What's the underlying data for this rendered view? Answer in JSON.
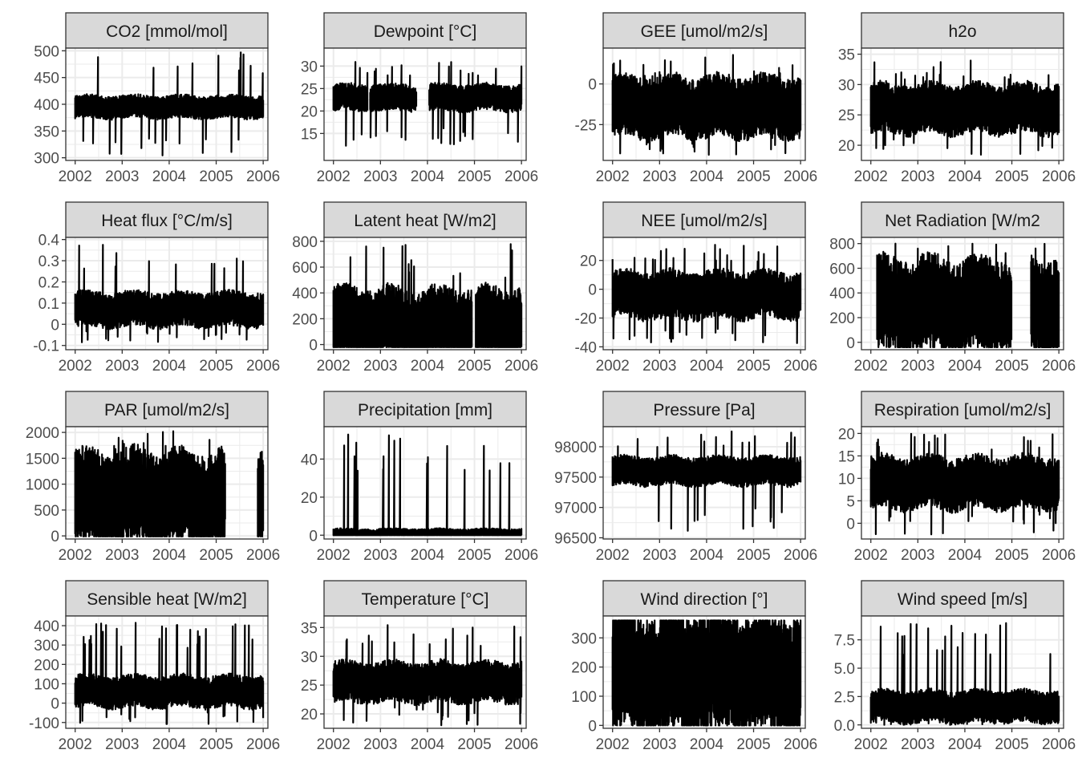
{
  "chart_data": [
    {
      "type": "line",
      "title": "CO2 [mmol/mol]",
      "xticks": [
        "2002",
        "2003",
        "2004",
        "2005",
        "2006"
      ],
      "yticks": [
        300,
        350,
        400,
        450,
        500
      ],
      "ylim": [
        295,
        505
      ],
      "band": {
        "base": 395,
        "amp": 18,
        "lo": 300,
        "hi": 498
      },
      "gaps": []
    },
    {
      "type": "line",
      "title": "Dewpoint [°C]",
      "xticks": [
        "2002",
        "2003",
        "2004",
        "2005",
        "2006"
      ],
      "yticks": [
        15,
        20,
        25,
        30
      ],
      "ylim": [
        9,
        34
      ],
      "band": {
        "base": 23,
        "amp": 2.5,
        "lo": 12,
        "hi": 31
      },
      "gaps": [
        [
          2002.73,
          2002.78
        ],
        [
          2003.77,
          2004.03
        ]
      ]
    },
    {
      "type": "line",
      "title": "GEE [umol/m2/s]",
      "xticks": [
        "2002",
        "2003",
        "2004",
        "2005",
        "2006"
      ],
      "yticks": [
        0,
        -25
      ],
      "ylim": [
        -47,
        22
      ],
      "band": {
        "base": -14,
        "amp": 16,
        "lo": -45,
        "hi": 18
      },
      "gaps": []
    },
    {
      "type": "line",
      "title": "h2o",
      "xticks": [
        "2002",
        "2003",
        "2004",
        "2005",
        "2006"
      ],
      "yticks": [
        20,
        25,
        30,
        35
      ],
      "ylim": [
        17.5,
        36
      ],
      "band": {
        "base": 26,
        "amp": 3.5,
        "lo": 18,
        "hi": 34
      },
      "gaps": []
    },
    {
      "type": "line",
      "title": "Heat flux [°C/m/s]",
      "xticks": [
        "2002",
        "2003",
        "2004",
        "2005",
        "2006"
      ],
      "yticks": [
        -0.1,
        0.0,
        0.1,
        0.2,
        0.3,
        0.4
      ],
      "ylim": [
        -0.12,
        0.41
      ],
      "band": {
        "base": 0.07,
        "amp": 0.07,
        "lo": -0.09,
        "hi": 0.38
      },
      "gaps": []
    },
    {
      "type": "line",
      "title": "Latent heat [W/m2]",
      "xticks": [
        "2002",
        "2003",
        "2004",
        "2005",
        "2006"
      ],
      "yticks": [
        0,
        200,
        400,
        600,
        800
      ],
      "ylim": [
        -40,
        830
      ],
      "band": {
        "base": 150,
        "amp": 250,
        "lo": -20,
        "hi": 780
      },
      "gaps": [
        [
          2004.95,
          2005.02
        ]
      ]
    },
    {
      "type": "line",
      "title": "NEE [umol/m2/s]",
      "xticks": [
        "2002",
        "2003",
        "2004",
        "2005",
        "2006"
      ],
      "yticks": [
        -40,
        -20,
        0,
        20
      ],
      "ylim": [
        -42,
        36
      ],
      "band": {
        "base": -4,
        "amp": 14,
        "lo": -39,
        "hi": 32
      },
      "gaps": []
    },
    {
      "type": "line",
      "title": "Net Radiation [W/m2",
      "xticks": [
        "2002",
        "2003",
        "2004",
        "2005",
        "2006"
      ],
      "yticks": [
        0,
        200,
        400,
        600,
        800
      ],
      "ylim": [
        -60,
        850
      ],
      "band": {
        "base": 300,
        "amp": 330,
        "lo": -40,
        "hi": 800
      },
      "gaps": [
        [
          2002.0,
          2002.13
        ],
        [
          2005.0,
          2005.4
        ]
      ]
    },
    {
      "type": "line",
      "title": "PAR [umol/m2/s]",
      "xticks": [
        "2002",
        "2003",
        "2004",
        "2005",
        "2006"
      ],
      "yticks": [
        0,
        500,
        1000,
        1500,
        2000
      ],
      "ylim": [
        -60,
        2110
      ],
      "band": {
        "base": 700,
        "amp": 800,
        "lo": -10,
        "hi": 2060
      },
      "gaps": [
        [
          2005.2,
          2005.88
        ]
      ]
    },
    {
      "type": "line",
      "title": "Precipitation [mm]",
      "xticks": [
        "2002",
        "2003",
        "2004",
        "2005",
        "2006"
      ],
      "yticks": [
        0,
        20,
        40
      ],
      "ylim": [
        -2,
        57
      ],
      "band": {
        "base": 1,
        "amp": 2,
        "lo": 0,
        "hi": 54
      },
      "gaps": []
    },
    {
      "type": "line",
      "title": "Pressure [Pa]",
      "xticks": [
        "2002",
        "2003",
        "2004",
        "2005",
        "2006"
      ],
      "yticks": [
        96500,
        97000,
        97500,
        98000
      ],
      "ylim": [
        96480,
        98330
      ],
      "band": {
        "base": 97600,
        "amp": 200,
        "lo": 96580,
        "hi": 98260
      },
      "gaps": []
    },
    {
      "type": "line",
      "title": "Respiration [umol/m2/s]",
      "xticks": [
        "2002",
        "2003",
        "2004",
        "2005",
        "2006"
      ],
      "yticks": [
        0,
        5,
        10,
        15,
        20
      ],
      "ylim": [
        -3.5,
        21.5
      ],
      "band": {
        "base": 9,
        "amp": 5,
        "lo": -2.5,
        "hi": 20
      },
      "gaps": []
    },
    {
      "type": "line",
      "title": "Sensible heat [W/m2]",
      "xticks": [
        "2002",
        "2003",
        "2004",
        "2005",
        "2006"
      ],
      "yticks": [
        -100,
        0,
        100,
        200,
        300,
        400
      ],
      "ylim": [
        -130,
        450
      ],
      "band": {
        "base": 60,
        "amp": 70,
        "lo": -110,
        "hi": 420
      },
      "gaps": []
    },
    {
      "type": "line",
      "title": "Temperature [°C]",
      "xticks": [
        "2002",
        "2003",
        "2004",
        "2005",
        "2006"
      ],
      "yticks": [
        20,
        25,
        30,
        35
      ],
      "ylim": [
        17.5,
        37
      ],
      "band": {
        "base": 25.5,
        "amp": 3,
        "lo": 18,
        "hi": 35.5
      },
      "gaps": []
    },
    {
      "type": "line",
      "title": "Wind direction [°]",
      "xticks": [
        "2002",
        "2003",
        "2004",
        "2005",
        "2006"
      ],
      "yticks": [
        0,
        100,
        200,
        300
      ],
      "ylim": [
        -10,
        375
      ],
      "band": {
        "base": 180,
        "amp": 180,
        "lo": 0,
        "hi": 360
      },
      "gaps": []
    },
    {
      "type": "line",
      "title": "Wind speed [m/s]",
      "xticks": [
        "2002",
        "2003",
        "2004",
        "2005",
        "2006"
      ],
      "ytick_labels": [
        "0.0",
        "2.5",
        "5.0",
        "7.5"
      ],
      "yticks": [
        0,
        2.5,
        5,
        7.5
      ],
      "ylim": [
        -0.3,
        9.6
      ],
      "band": {
        "base": 1.6,
        "amp": 1.2,
        "lo": 0,
        "hi": 9
      },
      "gaps": []
    }
  ],
  "style": {
    "panel_border": "#333333",
    "strip_fill": "#d9d9d9",
    "grid": "#ebebeb",
    "line": "#000000"
  }
}
